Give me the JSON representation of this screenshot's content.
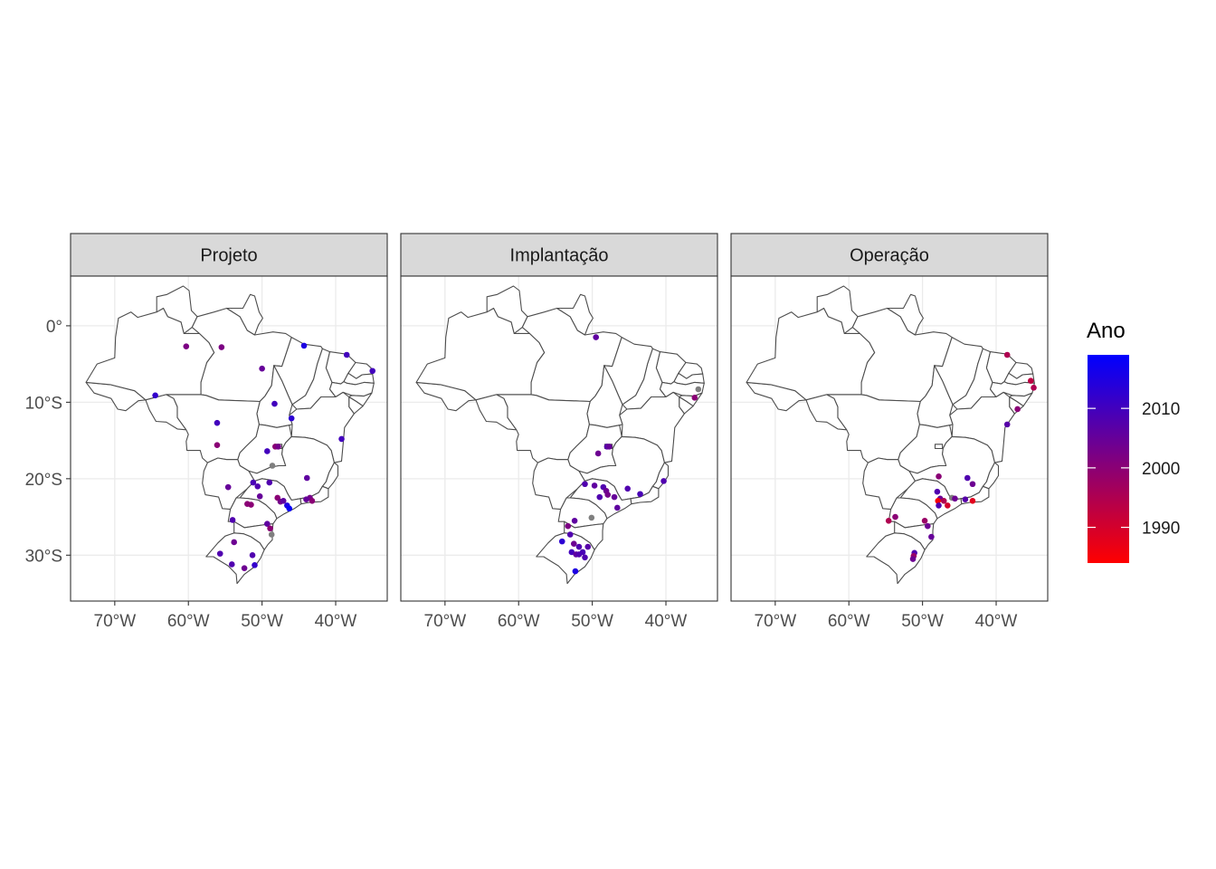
{
  "legend": {
    "title": "Ano",
    "labels": [
      "2010",
      "2000",
      "1990"
    ],
    "range": [
      1984,
      2019
    ],
    "ticks": [
      2010,
      2000,
      1990
    ],
    "low_color": "#ff0000",
    "high_color": "#0000ff"
  },
  "axes": {
    "lon_range": [
      -76,
      -33
    ],
    "lat_range": [
      -36,
      6.5
    ],
    "x_ticks": [
      -70,
      -60,
      -50,
      -40
    ],
    "x_labels": [
      "70°W",
      "60°W",
      "50°W",
      "40°W"
    ],
    "y_ticks": [
      0,
      -10,
      -20,
      -30
    ],
    "y_labels": [
      "0°",
      "10°S",
      "20°S",
      "30°S"
    ],
    "grid": true
  },
  "na_color": "#7f7f7f",
  "chart_data": {
    "type": "scatter",
    "panels": [
      {
        "title": "Projeto",
        "points": [
          {
            "lon": -60.3,
            "lat": -2.7,
            "year": 2002
          },
          {
            "lon": -55.5,
            "lat": -2.8,
            "year": 2002
          },
          {
            "lon": -50.0,
            "lat": -5.6,
            "year": 2005
          },
          {
            "lon": -44.3,
            "lat": -2.6,
            "year": 2015
          },
          {
            "lon": -38.5,
            "lat": -3.8,
            "year": 2010
          },
          {
            "lon": -35.0,
            "lat": -5.9,
            "year": 2010
          },
          {
            "lon": -64.5,
            "lat": -9.1,
            "year": 2012
          },
          {
            "lon": -48.3,
            "lat": -10.2,
            "year": 2010
          },
          {
            "lon": -46.0,
            "lat": -12.1,
            "year": 2013
          },
          {
            "lon": -56.1,
            "lat": -12.7,
            "year": 2010
          },
          {
            "lon": -56.1,
            "lat": -15.6,
            "year": 2000
          },
          {
            "lon": -39.2,
            "lat": -14.8,
            "year": 2010
          },
          {
            "lon": -48.2,
            "lat": -15.8,
            "year": 2000
          },
          {
            "lon": -47.8,
            "lat": -15.8,
            "year": 2003
          },
          {
            "lon": -49.3,
            "lat": -16.4,
            "year": 2010
          },
          {
            "lon": -48.6,
            "lat": -18.3,
            "year": null
          },
          {
            "lon": -43.9,
            "lat": -19.9,
            "year": 2006
          },
          {
            "lon": -49.0,
            "lat": -20.5,
            "year": 2008
          },
          {
            "lon": -54.6,
            "lat": -21.1,
            "year": 2005
          },
          {
            "lon": -51.2,
            "lat": -20.5,
            "year": 2009
          },
          {
            "lon": -50.6,
            "lat": -21.0,
            "year": 2008
          },
          {
            "lon": -50.3,
            "lat": -22.3,
            "year": 2005
          },
          {
            "lon": -47.9,
            "lat": -22.5,
            "year": 2000
          },
          {
            "lon": -47.5,
            "lat": -23.0,
            "year": 2003
          },
          {
            "lon": -47.1,
            "lat": -22.9,
            "year": 2006
          },
          {
            "lon": -46.6,
            "lat": -23.5,
            "year": 2015
          },
          {
            "lon": -46.3,
            "lat": -23.9,
            "year": 2018
          },
          {
            "lon": -43.5,
            "lat": -22.5,
            "year": 2003
          },
          {
            "lon": -43.2,
            "lat": -22.9,
            "year": 2000
          },
          {
            "lon": -44.0,
            "lat": -22.7,
            "year": 2005
          },
          {
            "lon": -52.0,
            "lat": -23.3,
            "year": 2000
          },
          {
            "lon": -51.5,
            "lat": -23.4,
            "year": 2000
          },
          {
            "lon": -54.0,
            "lat": -25.4,
            "year": 2008
          },
          {
            "lon": -49.3,
            "lat": -25.9,
            "year": 2006
          },
          {
            "lon": -48.9,
            "lat": -26.5,
            "year": 2000
          },
          {
            "lon": -48.7,
            "lat": -27.3,
            "year": null
          },
          {
            "lon": -55.7,
            "lat": -29.8,
            "year": 2008
          },
          {
            "lon": -53.8,
            "lat": -28.3,
            "year": 2004
          },
          {
            "lon": -54.1,
            "lat": -31.2,
            "year": 2008
          },
          {
            "lon": -52.4,
            "lat": -31.7,
            "year": 2004
          },
          {
            "lon": -51.3,
            "lat": -30.0,
            "year": 2008
          },
          {
            "lon": -51.0,
            "lat": -31.3,
            "year": 2012
          }
        ]
      },
      {
        "title": "Implantação",
        "points": [
          {
            "lon": -49.5,
            "lat": -1.5,
            "year": 2006
          },
          {
            "lon": -35.6,
            "lat": -8.3,
            "year": null
          },
          {
            "lon": -36.1,
            "lat": -9.4,
            "year": 2000
          },
          {
            "lon": -48.0,
            "lat": -15.8,
            "year": 2007
          },
          {
            "lon": -47.7,
            "lat": -15.8,
            "year": 2005
          },
          {
            "lon": -49.2,
            "lat": -16.7,
            "year": 2004
          },
          {
            "lon": -40.3,
            "lat": -20.3,
            "year": 2008
          },
          {
            "lon": -51.0,
            "lat": -20.7,
            "year": 2008
          },
          {
            "lon": -49.7,
            "lat": -20.9,
            "year": 2006
          },
          {
            "lon": -48.5,
            "lat": -21.1,
            "year": 2008
          },
          {
            "lon": -48.1,
            "lat": -21.6,
            "year": 2004
          },
          {
            "lon": -47.9,
            "lat": -22.1,
            "year": 2003
          },
          {
            "lon": -45.2,
            "lat": -21.3,
            "year": 2008
          },
          {
            "lon": -43.5,
            "lat": -22.0,
            "year": 2009
          },
          {
            "lon": -49.0,
            "lat": -22.4,
            "year": 2008
          },
          {
            "lon": -47.0,
            "lat": -22.4,
            "year": 2005
          },
          {
            "lon": -46.6,
            "lat": -23.8,
            "year": 2006
          },
          {
            "lon": -52.4,
            "lat": -25.5,
            "year": 2006
          },
          {
            "lon": -50.1,
            "lat": -25.1,
            "year": null
          },
          {
            "lon": -53.3,
            "lat": -26.2,
            "year": 2002
          },
          {
            "lon": -54.1,
            "lat": -28.2,
            "year": 2013
          },
          {
            "lon": -53.0,
            "lat": -27.3,
            "year": 2008
          },
          {
            "lon": -52.5,
            "lat": -28.5,
            "year": 2004
          },
          {
            "lon": -51.8,
            "lat": -28.9,
            "year": 2008
          },
          {
            "lon": -50.6,
            "lat": -28.9,
            "year": 2007
          },
          {
            "lon": -52.8,
            "lat": -29.6,
            "year": 2010
          },
          {
            "lon": -52.2,
            "lat": -29.9,
            "year": 2006
          },
          {
            "lon": -51.8,
            "lat": -29.9,
            "year": 2008
          },
          {
            "lon": -51.3,
            "lat": -29.6,
            "year": 2009
          },
          {
            "lon": -51.0,
            "lat": -30.3,
            "year": 2008
          },
          {
            "lon": -52.3,
            "lat": -32.1,
            "year": 2015
          }
        ]
      },
      {
        "title": "Operação",
        "points": [
          {
            "lon": -38.5,
            "lat": -3.8,
            "year": 1995
          },
          {
            "lon": -35.3,
            "lat": -7.2,
            "year": 1993
          },
          {
            "lon": -34.9,
            "lat": -8.1,
            "year": 1995
          },
          {
            "lon": -37.1,
            "lat": -10.9,
            "year": 2000
          },
          {
            "lon": -38.5,
            "lat": -12.9,
            "year": 2007
          },
          {
            "lon": -47.8,
            "lat": -19.7,
            "year": 2000
          },
          {
            "lon": -43.9,
            "lat": -19.9,
            "year": 2008
          },
          {
            "lon": -43.2,
            "lat": -20.7,
            "year": 2004
          },
          {
            "lon": -48.0,
            "lat": -21.7,
            "year": 2008
          },
          {
            "lon": -47.6,
            "lat": -22.6,
            "year": 2004
          },
          {
            "lon": -47.1,
            "lat": -22.9,
            "year": 1995
          },
          {
            "lon": -47.9,
            "lat": -22.9,
            "year": 1985
          },
          {
            "lon": -46.6,
            "lat": -23.5,
            "year": 1990
          },
          {
            "lon": -46.0,
            "lat": -22.5,
            "year": null
          },
          {
            "lon": -45.6,
            "lat": -22.6,
            "year": 2004
          },
          {
            "lon": -44.2,
            "lat": -22.7,
            "year": 2007
          },
          {
            "lon": -43.2,
            "lat": -22.9,
            "year": 1988
          },
          {
            "lon": -47.8,
            "lat": -23.5,
            "year": 2008
          },
          {
            "lon": -53.7,
            "lat": -25.0,
            "year": 2000
          },
          {
            "lon": -54.6,
            "lat": -25.5,
            "year": 1995
          },
          {
            "lon": -49.7,
            "lat": -25.5,
            "year": 1998
          },
          {
            "lon": -49.3,
            "lat": -26.2,
            "year": 2004
          },
          {
            "lon": -48.8,
            "lat": -27.6,
            "year": 2005
          },
          {
            "lon": -51.1,
            "lat": -29.7,
            "year": 2008
          },
          {
            "lon": -51.2,
            "lat": -30.1,
            "year": 1998
          },
          {
            "lon": -51.3,
            "lat": -30.5,
            "year": 2004
          }
        ]
      }
    ]
  }
}
